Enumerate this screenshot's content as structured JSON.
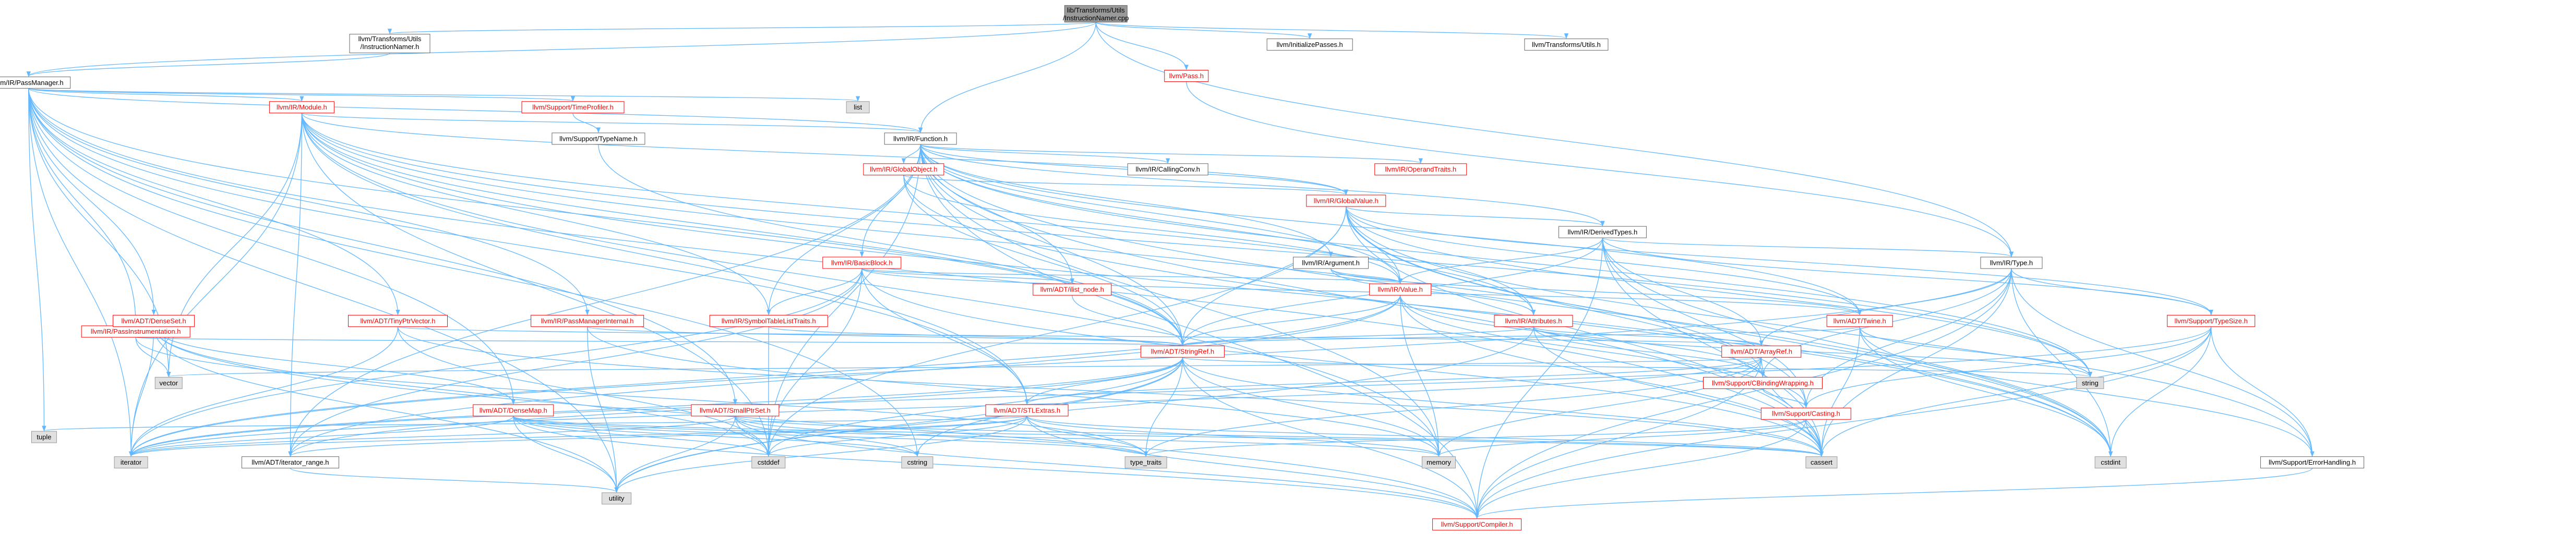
{
  "colors": {
    "root_fill": "#999999",
    "root_border": "#666666",
    "file_fill": "#ffffff",
    "file_border": "#666666",
    "system_fill": "#e0e0e0",
    "system_border": "#999999",
    "file_border_red": "#ff0000",
    "text": "#000000",
    "text_red": "#ff0000",
    "edge": "#63b8ff"
  },
  "nodes": [
    {
      "id": "root",
      "label1": "lib/Transforms/Utils",
      "label2": "/InstructionNamer.cpp",
      "kind": "root"
    },
    {
      "id": "initpasses",
      "label1": "llvm/InitializePasses.h",
      "kind": "file"
    },
    {
      "id": "xformutils",
      "label1": "llvm/Transforms/Utils.h",
      "kind": "file"
    },
    {
      "id": "instnamer",
      "label1": "llvm/Transforms/Utils",
      "label2": "/InstructionNamer.h",
      "kind": "file"
    },
    {
      "id": "pass",
      "label1": "llvm/Pass.h",
      "kind": "red"
    },
    {
      "id": "passmgr",
      "label1": "llvm/IR/PassManager.h",
      "kind": "file"
    },
    {
      "id": "module",
      "label1": "llvm/IR/Module.h",
      "kind": "red"
    },
    {
      "id": "timeprof",
      "label1": "llvm/Support/TimeProfiler.h",
      "kind": "red"
    },
    {
      "id": "list",
      "label1": "list",
      "kind": "system"
    },
    {
      "id": "typename",
      "label1": "llvm/Support/TypeName.h",
      "kind": "file"
    },
    {
      "id": "function",
      "label1": "llvm/IR/Function.h",
      "kind": "file"
    },
    {
      "id": "globalobj",
      "label1": "llvm/IR/GlobalObject.h",
      "kind": "red"
    },
    {
      "id": "callconv",
      "label1": "llvm/IR/CallingConv.h",
      "kind": "file"
    },
    {
      "id": "optraits",
      "label1": "llvm/IR/OperandTraits.h",
      "kind": "red"
    },
    {
      "id": "globalval",
      "label1": "llvm/IR/GlobalValue.h",
      "kind": "red"
    },
    {
      "id": "derived",
      "label1": "llvm/IR/DerivedTypes.h",
      "kind": "file"
    },
    {
      "id": "argument",
      "label1": "llvm/IR/Argument.h",
      "kind": "file"
    },
    {
      "id": "irtype",
      "label1": "llvm/IR/Type.h",
      "kind": "file"
    },
    {
      "id": "basicblock",
      "label1": "llvm/IR/BasicBlock.h",
      "kind": "red"
    },
    {
      "id": "ilistnode",
      "label1": "llvm/ADT/ilist_node.h",
      "kind": "red"
    },
    {
      "id": "value",
      "label1": "llvm/IR/Value.h",
      "kind": "red"
    },
    {
      "id": "attributes",
      "label1": "llvm/IR/Attributes.h",
      "kind": "red"
    },
    {
      "id": "twine",
      "label1": "llvm/ADT/Twine.h",
      "kind": "red"
    },
    {
      "id": "typesize",
      "label1": "llvm/Support/TypeSize.h",
      "kind": "red"
    },
    {
      "id": "symtab",
      "label1": "llvm/IR/SymbolTableListTraits.h",
      "kind": "red"
    },
    {
      "id": "pmint",
      "label1": "llvm/IR/PassManagerInternal.h",
      "kind": "red"
    },
    {
      "id": "tinyptr",
      "label1": "llvm/ADT/TinyPtrVector.h",
      "kind": "red"
    },
    {
      "id": "passinstr",
      "label1": "llvm/IR/PassInstrumentation.h",
      "kind": "red"
    },
    {
      "id": "denseset",
      "label1": "llvm/ADT/DenseSet.h",
      "kind": "red"
    },
    {
      "id": "stringref",
      "label1": "llvm/ADT/StringRef.h",
      "kind": "red"
    },
    {
      "id": "arrayref",
      "label1": "llvm/ADT/ArrayRef.h",
      "kind": "red"
    },
    {
      "id": "cbinding",
      "label1": "llvm/Support/CBindingWrapping.h",
      "kind": "red"
    },
    {
      "id": "vector",
      "label1": "vector",
      "kind": "system"
    },
    {
      "id": "stlextras",
      "label1": "llvm/ADT/STLExtras.h",
      "kind": "red"
    },
    {
      "id": "smallptrset",
      "label1": "llvm/ADT/SmallPtrSet.h",
      "kind": "red"
    },
    {
      "id": "densemap",
      "label1": "llvm/ADT/DenseMap.h",
      "kind": "red"
    },
    {
      "id": "string",
      "label1": "string",
      "kind": "system"
    },
    {
      "id": "casting",
      "label1": "llvm/Support/Casting.h",
      "kind": "red"
    },
    {
      "id": "tuple",
      "label1": "tuple",
      "kind": "system"
    },
    {
      "id": "iterator",
      "label1": "iterator",
      "kind": "system"
    },
    {
      "id": "iterrange",
      "label1": "llvm/ADT/iterator_range.h",
      "kind": "file"
    },
    {
      "id": "cstddef",
      "label1": "cstddef",
      "kind": "system"
    },
    {
      "id": "cstring",
      "label1": "cstring",
      "kind": "system"
    },
    {
      "id": "typetraits",
      "label1": "type_traits",
      "kind": "system"
    },
    {
      "id": "memory",
      "label1": "memory",
      "kind": "system"
    },
    {
      "id": "cassert",
      "label1": "cassert",
      "kind": "system"
    },
    {
      "id": "cstdint",
      "label1": "cstdint",
      "kind": "system"
    },
    {
      "id": "errhandling",
      "label1": "llvm/Support/ErrorHandling.h",
      "kind": "file"
    },
    {
      "id": "utility",
      "label1": "utility",
      "kind": "system"
    },
    {
      "id": "compiler",
      "label1": "llvm/Support/Compiler.h",
      "kind": "red"
    }
  ],
  "edges": [
    [
      "root",
      "initpasses"
    ],
    [
      "root",
      "xformutils"
    ],
    [
      "root",
      "instnamer"
    ],
    [
      "root",
      "pass"
    ],
    [
      "root",
      "passmgr"
    ],
    [
      "root",
      "function"
    ],
    [
      "root",
      "irtype"
    ],
    [
      "instnamer",
      "passmgr"
    ],
    [
      "pass",
      "irtype"
    ],
    [
      "passmgr",
      "module"
    ],
    [
      "passmgr",
      "timeprof"
    ],
    [
      "passmgr",
      "list"
    ],
    [
      "passmgr",
      "function"
    ],
    [
      "passmgr",
      "passinstr"
    ],
    [
      "passmgr",
      "pmint"
    ],
    [
      "passmgr",
      "tinyptr"
    ],
    [
      "passmgr",
      "denseset"
    ],
    [
      "passmgr",
      "stringref"
    ],
    [
      "passmgr",
      "stlextras"
    ],
    [
      "passmgr",
      "smallptrset"
    ],
    [
      "passmgr",
      "densemap"
    ],
    [
      "passmgr",
      "vector"
    ],
    [
      "passmgr",
      "tuple"
    ],
    [
      "passmgr",
      "iterator"
    ],
    [
      "passmgr",
      "cstring"
    ],
    [
      "passmgr",
      "cassert"
    ],
    [
      "passmgr",
      "utility"
    ],
    [
      "timeprof",
      "typename"
    ],
    [
      "typename",
      "stringref"
    ],
    [
      "module",
      "function"
    ],
    [
      "module",
      "globalval"
    ],
    [
      "module",
      "attributes"
    ],
    [
      "module",
      "stringref"
    ],
    [
      "module",
      "stlextras"
    ],
    [
      "module",
      "iterrange"
    ],
    [
      "module",
      "cbinding"
    ],
    [
      "module",
      "symtab"
    ],
    [
      "module",
      "iterator"
    ],
    [
      "module",
      "cstddef"
    ],
    [
      "module",
      "memory"
    ],
    [
      "module",
      "string"
    ],
    [
      "module",
      "vector"
    ],
    [
      "module",
      "cstdint"
    ],
    [
      "function",
      "globalobj"
    ],
    [
      "function",
      "callconv"
    ],
    [
      "function",
      "optraits"
    ],
    [
      "function",
      "derived"
    ],
    [
      "function",
      "argument"
    ],
    [
      "function",
      "basicblock"
    ],
    [
      "function",
      "ilistnode"
    ],
    [
      "function",
      "value"
    ],
    [
      "function",
      "attributes"
    ],
    [
      "function",
      "twine"
    ],
    [
      "function",
      "symtab"
    ],
    [
      "function",
      "stringref"
    ],
    [
      "function",
      "cstddef"
    ],
    [
      "function",
      "cstdint"
    ],
    [
      "function",
      "memory"
    ],
    [
      "function",
      "string"
    ],
    [
      "function",
      "iterrange"
    ],
    [
      "function",
      "compiler"
    ],
    [
      "function",
      "globalval"
    ],
    [
      "function",
      "cassert"
    ],
    [
      "globalobj",
      "globalval"
    ],
    [
      "globalobj",
      "value"
    ],
    [
      "globalobj",
      "stringref"
    ],
    [
      "globalobj",
      "cstdint"
    ],
    [
      "globalval",
      "derived"
    ],
    [
      "globalval",
      "value"
    ],
    [
      "globalval",
      "twine"
    ],
    [
      "globalval",
      "stringref"
    ],
    [
      "globalval",
      "casting"
    ],
    [
      "globalval",
      "errhandling"
    ],
    [
      "globalval",
      "cassert"
    ],
    [
      "globalval",
      "cstddef"
    ],
    [
      "globalval",
      "cstdint"
    ],
    [
      "globalval",
      "string"
    ],
    [
      "globalval",
      "typesize"
    ],
    [
      "derived",
      "irtype"
    ],
    [
      "derived",
      "arrayref"
    ],
    [
      "derived",
      "stringref"
    ],
    [
      "derived",
      "casting"
    ],
    [
      "derived",
      "typesize"
    ],
    [
      "derived",
      "cassert"
    ],
    [
      "derived",
      "cstdint"
    ],
    [
      "derived",
      "compiler"
    ],
    [
      "derived",
      "value"
    ],
    [
      "argument",
      "value"
    ],
    [
      "argument",
      "attributes"
    ],
    [
      "argument",
      "twine"
    ],
    [
      "irtype",
      "arrayref"
    ],
    [
      "irtype",
      "casting"
    ],
    [
      "irtype",
      "cbinding"
    ],
    [
      "irtype",
      "compiler"
    ],
    [
      "irtype",
      "errhandling"
    ],
    [
      "irtype",
      "typesize"
    ],
    [
      "irtype",
      "cassert"
    ],
    [
      "irtype",
      "cstdint"
    ],
    [
      "irtype",
      "iterator"
    ],
    [
      "typesize",
      "casting"
    ],
    [
      "typesize",
      "compiler"
    ],
    [
      "typesize",
      "errhandling"
    ],
    [
      "typesize",
      "cassert"
    ],
    [
      "typesize",
      "cstdint"
    ],
    [
      "typesize",
      "iterator"
    ],
    [
      "basicblock",
      "ilistnode"
    ],
    [
      "basicblock",
      "value"
    ],
    [
      "basicblock",
      "symtab"
    ],
    [
      "basicblock",
      "twine"
    ],
    [
      "basicblock",
      "iterrange"
    ],
    [
      "basicblock",
      "stlextras"
    ],
    [
      "basicblock",
      "cassert"
    ],
    [
      "basicblock",
      "cstddef"
    ],
    [
      "basicblock",
      "iterator"
    ],
    [
      "ilistnode",
      "stringref"
    ],
    [
      "value",
      "stringref"
    ],
    [
      "value",
      "casting"
    ],
    [
      "value",
      "cbinding"
    ],
    [
      "value",
      "iterrange"
    ],
    [
      "value",
      "cassert"
    ],
    [
      "value",
      "iterator"
    ],
    [
      "value",
      "memory"
    ],
    [
      "attributes",
      "arrayref"
    ],
    [
      "attributes",
      "stringref"
    ],
    [
      "attributes",
      "cbinding"
    ],
    [
      "attributes",
      "string"
    ],
    [
      "attributes",
      "utility"
    ],
    [
      "attributes",
      "cassert"
    ],
    [
      "twine",
      "stringref"
    ],
    [
      "twine",
      "errhandling"
    ],
    [
      "twine",
      "cassert"
    ],
    [
      "twine",
      "cstdint"
    ],
    [
      "twine",
      "string"
    ],
    [
      "symtab",
      "stringref"
    ],
    [
      "symtab",
      "cstddef"
    ],
    [
      "pmint",
      "stringref"
    ],
    [
      "pmint",
      "memory"
    ],
    [
      "pmint",
      "utility"
    ],
    [
      "tinyptr",
      "arrayref"
    ],
    [
      "tinyptr",
      "cassert"
    ],
    [
      "tinyptr",
      "cstddef"
    ],
    [
      "tinyptr",
      "iterator"
    ],
    [
      "tinyptr",
      "type_traits"
    ],
    [
      "passinstr",
      "stringref"
    ],
    [
      "passinstr",
      "vector"
    ],
    [
      "passinstr",
      "typetraits"
    ],
    [
      "denseset",
      "densemap"
    ],
    [
      "denseset",
      "cstddef"
    ],
    [
      "denseset",
      "iterator"
    ],
    [
      "denseset",
      "utility"
    ],
    [
      "denseset",
      "compiler"
    ],
    [
      "stringref",
      "stlextras"
    ],
    [
      "stringref",
      "iterrange"
    ],
    [
      "stringref",
      "compiler"
    ],
    [
      "stringref",
      "cassert"
    ],
    [
      "stringref",
      "cstddef"
    ],
    [
      "stringref",
      "cstring"
    ],
    [
      "stringref",
      "iterator"
    ],
    [
      "stringref",
      "string"
    ],
    [
      "stringref",
      "typetraits"
    ],
    [
      "stringref",
      "utility"
    ],
    [
      "stringref",
      "memory"
    ],
    [
      "arrayref",
      "stlextras"
    ],
    [
      "arrayref",
      "compiler"
    ],
    [
      "arrayref",
      "memory"
    ],
    [
      "arrayref",
      "cassert"
    ],
    [
      "arrayref",
      "vector"
    ],
    [
      "arrayref",
      "typetraits"
    ],
    [
      "arrayref",
      "iterator"
    ],
    [
      "cbinding",
      "casting"
    ],
    [
      "stlextras",
      "iterrange"
    ],
    [
      "stlextras",
      "tuple"
    ],
    [
      "stlextras",
      "cstddef"
    ],
    [
      "stlextras",
      "iterator"
    ],
    [
      "stlextras",
      "utility"
    ],
    [
      "stlextras",
      "typetraits"
    ],
    [
      "stlextras",
      "memory"
    ],
    [
      "stlextras",
      "cassert"
    ],
    [
      "stlextras",
      "compiler"
    ],
    [
      "smallptrset",
      "compiler"
    ],
    [
      "smallptrset",
      "typetraits"
    ],
    [
      "smallptrset",
      "cstddef"
    ],
    [
      "smallptrset",
      "cstring"
    ],
    [
      "smallptrset",
      "iterator"
    ],
    [
      "smallptrset",
      "utility"
    ],
    [
      "smallptrset",
      "cassert"
    ],
    [
      "densemap",
      "compiler"
    ],
    [
      "densemap",
      "typetraits"
    ],
    [
      "densemap",
      "utility"
    ],
    [
      "densemap",
      "cstddef"
    ],
    [
      "densemap",
      "cstring"
    ],
    [
      "densemap",
      "iterator"
    ],
    [
      "densemap",
      "cassert"
    ],
    [
      "densemap",
      "memory"
    ],
    [
      "casting",
      "compiler"
    ],
    [
      "casting",
      "cassert"
    ],
    [
      "casting",
      "memory"
    ],
    [
      "casting",
      "typetraits"
    ],
    [
      "iterrange",
      "utility"
    ],
    [
      "errhandling",
      "compiler"
    ]
  ]
}
